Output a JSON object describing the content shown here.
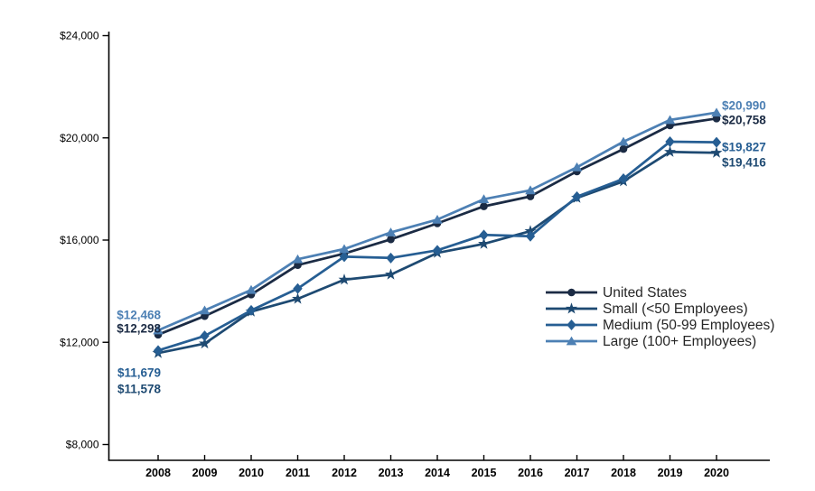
{
  "chart_data": {
    "type": "line",
    "x_labels": [
      "2008",
      "2009",
      "2010",
      "2011",
      "2012",
      "2013",
      "2014",
      "2015",
      "2016",
      "2017",
      "2018",
      "2019",
      "2020"
    ],
    "y_axis": {
      "min": 8000,
      "max": 24000,
      "ticks": [
        {
          "value": 24000,
          "label": "$24,000"
        },
        {
          "value": 20000,
          "label": "$20,000"
        },
        {
          "value": 16000,
          "label": "$16,000"
        },
        {
          "value": 12000,
          "label": "$12,000"
        },
        {
          "value": 8000,
          "label": "$8,000"
        }
      ]
    },
    "grid": false,
    "legend_position": "inside-right",
    "series": [
      {
        "name": "United States",
        "marker": "circle",
        "color": "#1b2b44",
        "values": [
          12298,
          13027,
          13871,
          15022,
          15473,
          16029,
          16655,
          17322,
          17710,
          18687,
          19565,
          20486,
          20758
        ],
        "start_label": "$12,298",
        "end_label": "$20,758"
      },
      {
        "name": "Small (<50 Employees)",
        "marker": "star",
        "color": "#1e4a72",
        "values": [
          11578,
          11950,
          13200,
          13700,
          14450,
          14650,
          15500,
          15850,
          16350,
          17650,
          18300,
          19450,
          19416
        ],
        "start_label": "$11,578",
        "end_label": "$19,416"
      },
      {
        "name": "Medium (50-99 Employees)",
        "marker": "diamond",
        "color": "#265e93",
        "values": [
          11679,
          12250,
          13250,
          14100,
          15350,
          15300,
          15600,
          16200,
          16150,
          17700,
          18400,
          19850,
          19827
        ],
        "start_label": "$11,679",
        "end_label": "$19,827"
      },
      {
        "name": "Large (100+ Employees)",
        "marker": "triangle",
        "color": "#4d80b4",
        "values": [
          12468,
          13250,
          14050,
          15250,
          15650,
          16300,
          16800,
          17600,
          17950,
          18850,
          19850,
          20700,
          20990
        ],
        "start_label": "$12,468",
        "end_label": "$20,990"
      }
    ]
  }
}
